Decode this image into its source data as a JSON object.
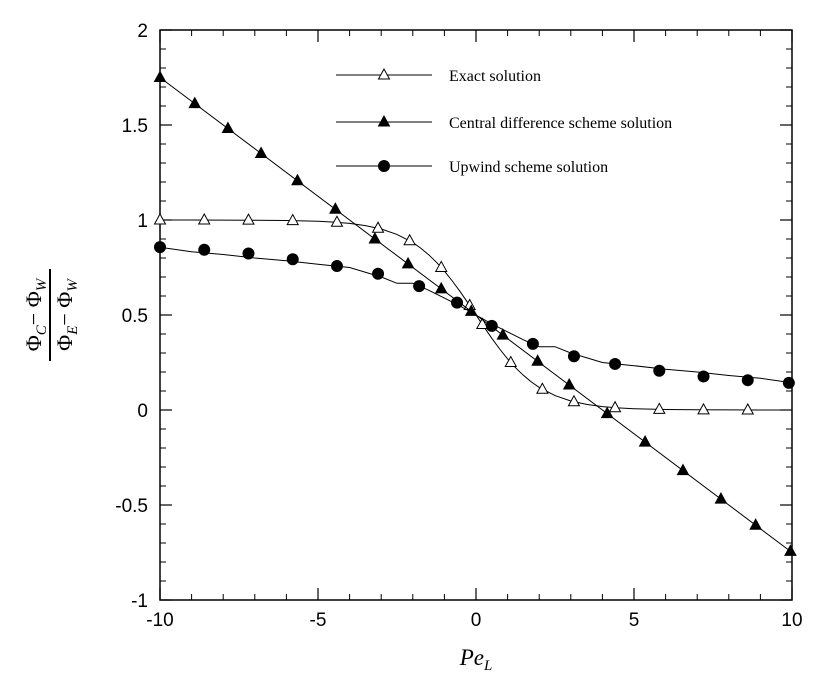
{
  "chart_data": {
    "type": "line",
    "title": "",
    "xlabel": {
      "main": "Pe",
      "sub": "L"
    },
    "ylabel": {
      "numerator": [
        {
          "text": "Φ",
          "sub": "C"
        },
        {
          "text": "− Φ",
          "sub": "W"
        }
      ],
      "denominator": [
        {
          "text": "Φ",
          "sub": "E"
        },
        {
          "text": "− Φ",
          "sub": "W"
        }
      ]
    },
    "xlim": [
      -10,
      10
    ],
    "ylim": [
      -1,
      2
    ],
    "xticks": [
      -10,
      -5,
      0,
      5,
      10
    ],
    "xtick_labels": [
      "-10",
      "-5",
      "0",
      "5",
      "10"
    ],
    "yticks": [
      -1,
      -0.5,
      0,
      0.5,
      1,
      1.5,
      2
    ],
    "ytick_labels": [
      "-1",
      "-0.5",
      "0",
      "0.5",
      "1",
      "1.5",
      "2"
    ],
    "grid": false,
    "legend_position": "top-right",
    "series": [
      {
        "name": "Exact solution",
        "marker": "open-triangle",
        "curve": [
          [
            -10,
            1.0
          ],
          [
            -9,
            0.9999
          ],
          [
            -8,
            0.9997
          ],
          [
            -7,
            0.9991
          ],
          [
            -6,
            0.9975
          ],
          [
            -5,
            0.9933
          ],
          [
            -4.5,
            0.989
          ],
          [
            -4,
            0.982
          ],
          [
            -3.5,
            0.9707
          ],
          [
            -3,
            0.9526
          ],
          [
            -2.5,
            0.9241
          ],
          [
            -2,
            0.8808
          ],
          [
            -1.75,
            0.852
          ],
          [
            -1.5,
            0.8176
          ],
          [
            -1.25,
            0.7773
          ],
          [
            -1,
            0.7311
          ],
          [
            -0.75,
            0.6792
          ],
          [
            -0.5,
            0.6225
          ],
          [
            -0.25,
            0.5622
          ],
          [
            0,
            0.5
          ],
          [
            0.25,
            0.4378
          ],
          [
            0.5,
            0.3775
          ],
          [
            0.75,
            0.3208
          ],
          [
            1,
            0.2689
          ],
          [
            1.25,
            0.2227
          ],
          [
            1.5,
            0.1824
          ],
          [
            1.75,
            0.148
          ],
          [
            2,
            0.1192
          ],
          [
            2.5,
            0.0759
          ],
          [
            3,
            0.0474
          ],
          [
            3.5,
            0.0293
          ],
          [
            4,
            0.018
          ],
          [
            4.5,
            0.011
          ],
          [
            5,
            0.0067
          ],
          [
            6,
            0.0025
          ],
          [
            7,
            0.0009
          ],
          [
            8,
            0.0003
          ],
          [
            9,
            0.0001
          ],
          [
            10,
            0.0
          ]
        ],
        "markers": [
          [
            -10.0,
            1.0
          ],
          [
            -8.6,
            0.9998
          ],
          [
            -7.2,
            0.9993
          ],
          [
            -5.8,
            0.997
          ],
          [
            -4.4,
            0.9879
          ],
          [
            -3.1,
            0.9568
          ],
          [
            -2.1,
            0.8909
          ],
          [
            -1.1,
            0.7503
          ],
          [
            -0.2,
            0.5498
          ],
          [
            0.2,
            0.4502
          ],
          [
            1.1,
            0.2497
          ],
          [
            2.1,
            0.1091
          ],
          [
            3.1,
            0.0432
          ],
          [
            4.4,
            0.0121
          ],
          [
            5.8,
            0.003
          ],
          [
            7.2,
            0.0007
          ],
          [
            8.6,
            0.0002
          ]
        ]
      },
      {
        "name": "Central difference scheme solution",
        "marker": "filled-triangle",
        "curve": [
          [
            -10,
            1.75
          ],
          [
            10,
            -0.75
          ]
        ],
        "markers": [
          [
            -10.0,
            1.75
          ],
          [
            -8.9,
            1.6125
          ],
          [
            -7.85,
            1.4813
          ],
          [
            -6.8,
            1.35
          ],
          [
            -5.65,
            1.2063
          ],
          [
            -4.45,
            1.0563
          ],
          [
            -3.2,
            0.9
          ],
          [
            -2.15,
            0.7688
          ],
          [
            -1.1,
            0.6375
          ],
          [
            -0.15,
            0.5188
          ],
          [
            0.85,
            0.3938
          ],
          [
            1.95,
            0.2563
          ],
          [
            2.95,
            0.1313
          ],
          [
            4.15,
            -0.0188
          ],
          [
            5.35,
            -0.1688
          ],
          [
            6.55,
            -0.3188
          ],
          [
            7.75,
            -0.4688
          ],
          [
            8.85,
            -0.6063
          ],
          [
            9.95,
            -0.7438
          ]
        ]
      },
      {
        "name": "Upwind scheme solution",
        "marker": "filled-circle",
        "curve": [
          [
            -10,
            0.8571
          ],
          [
            -9,
            0.8333
          ],
          [
            -8,
            0.8182
          ],
          [
            -7,
            0.8
          ],
          [
            -6,
            0.7857
          ],
          [
            -5,
            0.7667
          ],
          [
            -4,
            0.75
          ],
          [
            -3,
            0.7
          ],
          [
            -2.5,
            0.6667
          ],
          [
            -2,
            0.6667
          ],
          [
            -1.5,
            0.6304
          ],
          [
            -1,
            0.5891
          ],
          [
            -0.5,
            0.5467
          ],
          [
            0,
            0.5
          ],
          [
            0.5,
            0.4533
          ],
          [
            1,
            0.4109
          ],
          [
            1.5,
            0.3696
          ],
          [
            2,
            0.3333
          ],
          [
            2.5,
            0.3333
          ],
          [
            3,
            0.3
          ],
          [
            4,
            0.25
          ],
          [
            5,
            0.2333
          ],
          [
            6,
            0.2143
          ],
          [
            7,
            0.2
          ],
          [
            8,
            0.1818
          ],
          [
            9,
            0.1667
          ],
          [
            10,
            0.1429
          ]
        ],
        "markers": [
          [
            -10.0,
            0.8571
          ],
          [
            -8.6,
            0.8431
          ],
          [
            -7.2,
            0.8235
          ],
          [
            -5.8,
            0.7937
          ],
          [
            -4.4,
            0.7576
          ],
          [
            -3.1,
            0.7173
          ],
          [
            -1.8,
            0.6522
          ],
          [
            -0.6,
            0.565
          ],
          [
            0.5,
            0.4426
          ],
          [
            1.8,
            0.3478
          ],
          [
            3.1,
            0.2827
          ],
          [
            4.4,
            0.2424
          ],
          [
            5.8,
            0.2063
          ],
          [
            7.2,
            0.1765
          ],
          [
            8.6,
            0.1569
          ],
          [
            9.9,
            0.1429
          ]
        ]
      }
    ]
  }
}
